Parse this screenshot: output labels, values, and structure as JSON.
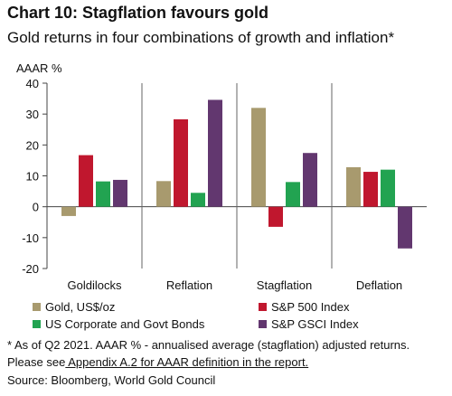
{
  "header": {
    "title": "Chart 10: Stagflation favours gold",
    "subtitle": "Gold returns in four combinations of growth and inflation*"
  },
  "chart_data": {
    "type": "bar",
    "ylabel": "AAAR %",
    "ylim": [
      -20,
      40
    ],
    "yticks": [
      40,
      30,
      20,
      10,
      0,
      -10,
      -20
    ],
    "categories": [
      "Goldilocks",
      "Reflation",
      "Stagflation",
      "Deflation"
    ],
    "series": [
      {
        "name": "Gold, US$/oz",
        "color": "#a89a6e",
        "values": [
          -3,
          8.3,
          32,
          12.8
        ]
      },
      {
        "name": "S&P 500 Index",
        "color": "#c0172e",
        "values": [
          16.7,
          28.3,
          -6.5,
          11.3
        ]
      },
      {
        "name": "US Corporate and Govt Bonds",
        "color": "#22a351",
        "values": [
          8.2,
          4.5,
          8,
          12
        ]
      },
      {
        "name": "S&P GSCI Index",
        "color": "#62376f",
        "values": [
          8.7,
          34.6,
          17.4,
          -13.5
        ]
      }
    ],
    "legend_position": "bottom",
    "grid": false
  },
  "footnotes": {
    "note1": "* As of Q2 2021. AAAR % - annualised average (stagflation) adjusted returns.",
    "note2_prefix": "Please see",
    "note2_link": " Appendix A.2 for AAAR definition in the report.",
    "source": "Source: Bloomberg, World Gold Council"
  }
}
